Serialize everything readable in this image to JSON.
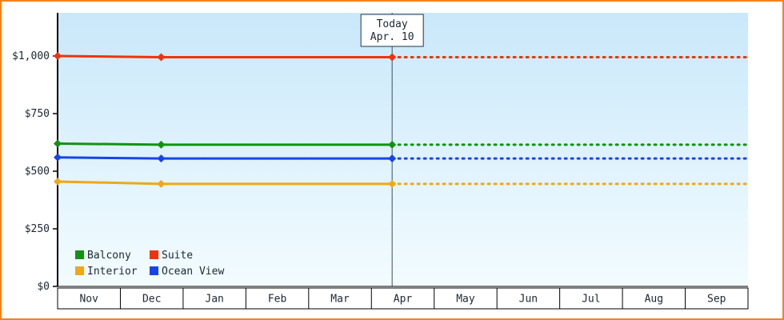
{
  "colors": {
    "frame_border": "#f5821f",
    "plot_bg_top": "#c9e8fa",
    "plot_bg_bottom": "#f3fcff",
    "axis": "#000000",
    "text": "#1b2733",
    "today_line": "#3d4f5c"
  },
  "chart_data": {
    "type": "line",
    "title": "",
    "x_unit": "months_from_Nov_1",
    "x_axis": {
      "categories": [
        "Nov",
        "Dec",
        "Jan",
        "Feb",
        "Mar",
        "Apr",
        "May",
        "Jun",
        "Jul",
        "Aug",
        "Sep"
      ]
    },
    "y_axis": {
      "tick_values": [
        0,
        250,
        500,
        750,
        1000
      ],
      "tick_labels": [
        "$0",
        "$250",
        "$500",
        "$750",
        "$1,000"
      ],
      "ylim": [
        0,
        1190
      ],
      "grid": false
    },
    "today": {
      "line1": "Today",
      "line2": "Apr. 10",
      "month_fraction": 5.33
    },
    "series": [
      {
        "name": "Suite",
        "color": "#ee3311",
        "points": [
          {
            "x": 0,
            "value": 1000
          },
          {
            "x": 1.65,
            "value": 995
          },
          {
            "x": 5.33,
            "value": 995
          }
        ],
        "projected_value": 995,
        "dashed_projection_to_end": true
      },
      {
        "name": "Balcony",
        "color": "#129212",
        "points": [
          {
            "x": 0,
            "value": 620
          },
          {
            "x": 1.65,
            "value": 615
          },
          {
            "x": 5.33,
            "value": 615
          }
        ],
        "projected_value": 615,
        "dashed_projection_to_end": true
      },
      {
        "name": "Ocean View",
        "color": "#1545e8",
        "points": [
          {
            "x": 0,
            "value": 560
          },
          {
            "x": 1.65,
            "value": 555
          },
          {
            "x": 5.33,
            "value": 555
          }
        ],
        "projected_value": 555,
        "dashed_projection_to_end": true
      },
      {
        "name": "Interior",
        "color": "#f0a719",
        "points": [
          {
            "x": 0,
            "value": 455
          },
          {
            "x": 1.65,
            "value": 445
          },
          {
            "x": 5.33,
            "value": 445
          }
        ],
        "projected_value": 445,
        "dashed_projection_to_end": true
      }
    ],
    "legend": {
      "position": "bottom-left-inside",
      "items": [
        {
          "label": "Balcony",
          "color": "#129212"
        },
        {
          "label": "Suite",
          "color": "#ee3311"
        },
        {
          "label": "Interior",
          "color": "#f0a719"
        },
        {
          "label": "Ocean View",
          "color": "#1545e8"
        }
      ]
    }
  }
}
